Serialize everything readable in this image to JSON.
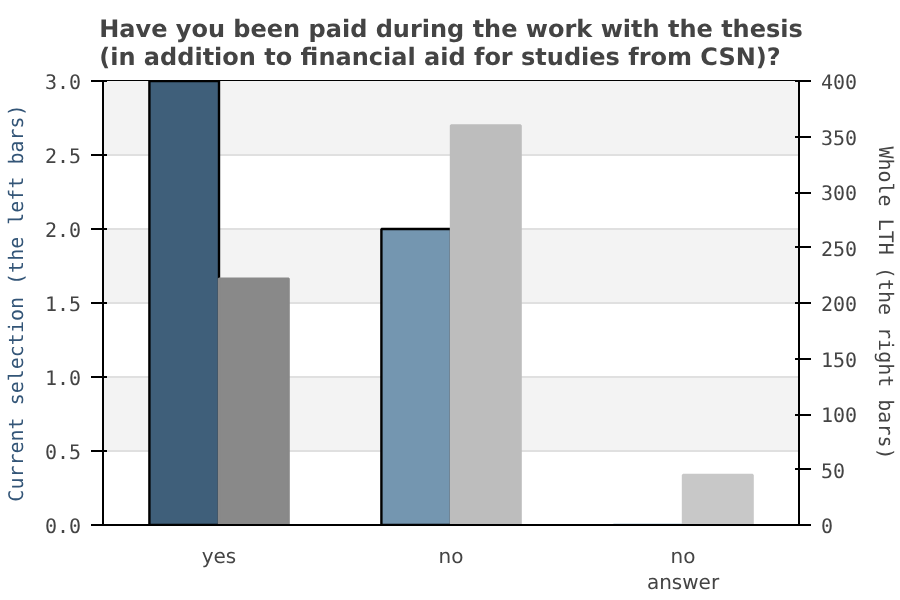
{
  "chart_data": {
    "type": "bar",
    "title": "Have you been paid during the work with the thesis\n(in addition to financial aid for studies from CSN)?",
    "ylabel": "Current selection (the left bars)",
    "y2label": "Whole LTH (the right bars)",
    "categories": [
      "yes",
      "no",
      "no answer"
    ],
    "series": [
      {
        "colors": [
          "#3f5f7a",
          "#7496b0",
          "#7496b0"
        ],
        "values": [
          3,
          2,
          0
        ]
      },
      {
        "colors": [
          "#898989",
          "#bdbdbd",
          "#c8c8c8"
        ],
        "values": [
          222,
          360,
          45
        ],
        "axis": "y2"
      }
    ],
    "ylim": [
      0,
      3
    ],
    "yticks": [
      {
        "value": 0,
        "label": "0.0"
      },
      {
        "value": 0.5,
        "label": "0.5"
      },
      {
        "value": 1,
        "label": "1.0"
      },
      {
        "value": 1.5,
        "label": "1.5"
      },
      {
        "value": 2,
        "label": "2.0"
      },
      {
        "value": 2.5,
        "label": "2.5"
      },
      {
        "value": 3,
        "label": "3.0"
      }
    ],
    "y2lim": [
      0,
      400
    ],
    "y2ticks": [
      0,
      50,
      100,
      150,
      200,
      250,
      300,
      350,
      400
    ],
    "grid": "y"
  }
}
